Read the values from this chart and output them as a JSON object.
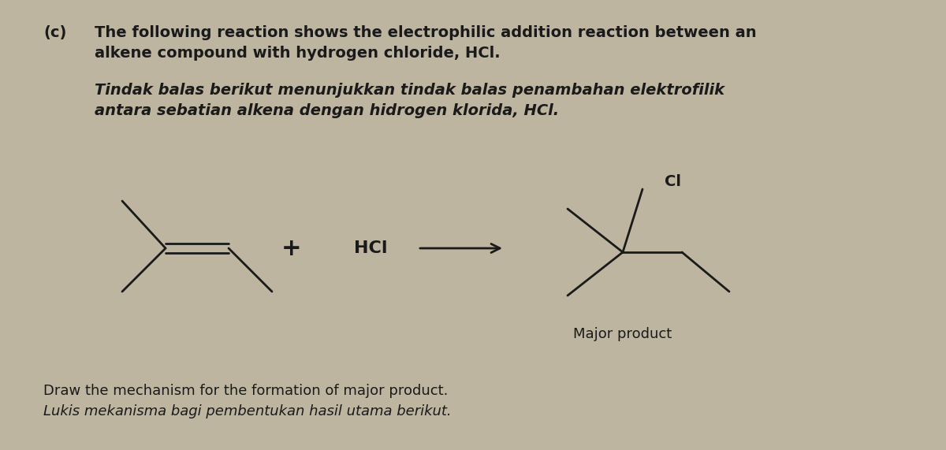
{
  "bg_color": "#bdb5a0",
  "text_color": "#1a1a1a",
  "title_c": "(c)",
  "title_line1": "The following reaction shows the electrophilic addition reaction between an",
  "title_line2": "alkene compound with hydrogen chloride, HCl.",
  "malay_line1": "Tindak balas berikut menunjukkan tindak balas penambahan elektrofilik",
  "malay_line2": "antara sebatian alkena dengan hidrogen klorida, HCl.",
  "plus_sign": "+",
  "hcl_label": "HCl",
  "cl_label": "Cl",
  "major_product_label": "Major product",
  "bottom_line1": "Draw the mechanism for the formation of major product.",
  "bottom_line2": "Lukis mekanisma bagi pembentukan hasil utama berikut.",
  "font_size_title": 14,
  "font_size_malay": 14,
  "font_size_label": 14,
  "font_size_major": 13,
  "font_size_bottom": 13,
  "line_color": "#1a1a1a",
  "product_line_color": "#1a1a1a",
  "lw": 2.0
}
